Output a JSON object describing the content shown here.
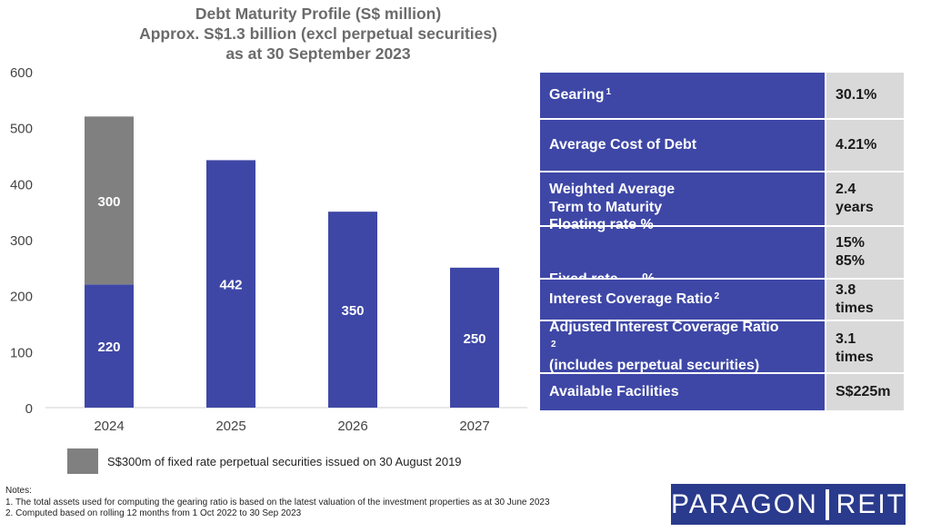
{
  "title": {
    "line1": "Debt Maturity Profile (S$ million)",
    "line2": "Approx. S$1.3 billion (excl perpetual securities)",
    "line3": "as at 30 September 2023"
  },
  "chart_data": {
    "type": "bar",
    "stacked": true,
    "categories": [
      "2024",
      "2025",
      "2026",
      "2027"
    ],
    "series": [
      {
        "values": [
          220,
          442,
          350,
          250
        ],
        "color": "#3e47a6"
      },
      {
        "name": "S$300m of fixed rate perpetual securities issued on 30 August 2019",
        "values": [
          300,
          0,
          0,
          0
        ],
        "color": "#808080"
      }
    ],
    "ylim": [
      0,
      600
    ],
    "yticks": [
      0,
      100,
      200,
      300,
      400,
      500,
      600
    ],
    "grid": false,
    "legend_position": "bottom",
    "title": "Debt Maturity Profile (S$ million)",
    "subtitle": "Approx. S$1.3 billion (excl perpetual securities) as at 30 September 2023"
  },
  "legend": {
    "text": "S$300m of fixed rate perpetual securities issued on 30 August 2019",
    "color": "#808080"
  },
  "kpis": [
    {
      "label": "Gearing",
      "sup": "1",
      "value": "30.1%"
    },
    {
      "label": "Average Cost of Debt",
      "value": "4.21%"
    },
    {
      "label_lines": [
        "Weighted Average",
        "Term to Maturity"
      ],
      "value": "2.4 years"
    },
    {
      "label_lines": [
        "Floating rate %",
        "Fixed rate      %"
      ],
      "value_lines": [
        "15%",
        "85%"
      ]
    },
    {
      "label": "Interest Coverage Ratio",
      "sup": "2",
      "value": "3.8 times"
    },
    {
      "label_lines": [
        "Adjusted Interest Coverage Ratio",
        "(includes perpetual securities)"
      ],
      "sup": "2",
      "value": "3.1 times"
    },
    {
      "label": "Available Facilities",
      "value": "S$225m"
    }
  ],
  "notes": {
    "heading": "Notes:",
    "items": [
      "1. The total assets used for computing the gearing ratio is based on the latest valuation of the investment properties as at 30 June 2023",
      "2. Computed based on rolling 12 months from 1 Oct 2022 to 30 Sep 2023"
    ]
  },
  "logo": {
    "left": "PARAGON",
    "right": "REIT"
  },
  "colors": {
    "bar_primary": "#3e47a6",
    "bar_secondary": "#808080",
    "table_label_bg": "#3e47a6",
    "table_value_bg": "#d9d9d9",
    "logo_bg": "#2a3a8c"
  }
}
